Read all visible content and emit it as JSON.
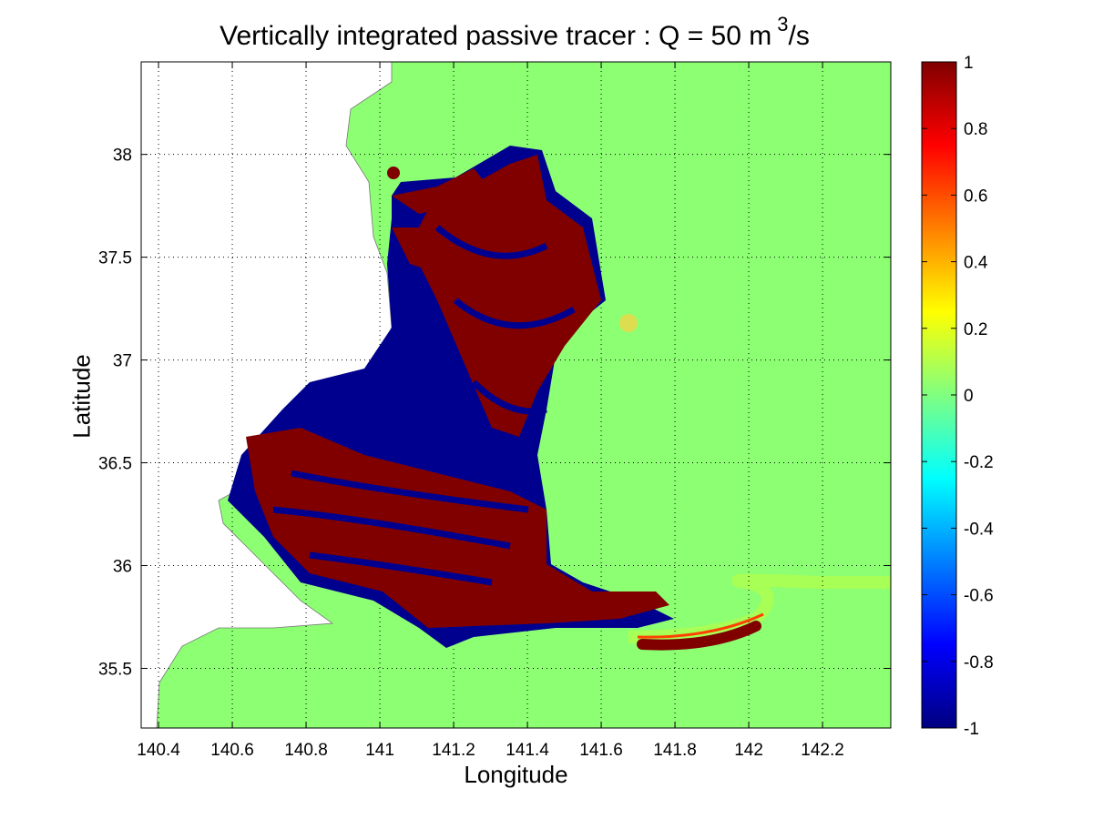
{
  "chart_data": {
    "type": "heatmap",
    "title_main": "Vertically integrated passive tracer : Q = 50 m",
    "title_sup": "3",
    "title_tail": "/s",
    "xlabel": "Longitude",
    "ylabel": "Latitude",
    "xlim": [
      140.353,
      142.385
    ],
    "ylim": [
      35.21,
      38.45
    ],
    "xticks": [
      "140.4",
      "140.6",
      "140.8",
      "141",
      "141.2",
      "141.4",
      "141.6",
      "141.8",
      "142",
      "142.2"
    ],
    "yticks": [
      "35.5",
      "36",
      "36.5",
      "37",
      "37.5",
      "38"
    ],
    "grid": "dotted, over land area",
    "colormap": "jet",
    "clim": [
      -1,
      1
    ],
    "colorbar_ticks": [
      "1",
      "0.8",
      "0.6",
      "0.4",
      "0.2",
      "0",
      "-0.2",
      "-0.4",
      "-0.6",
      "-0.8",
      "-1"
    ],
    "colorbar_location": "right",
    "colors": {
      "background_field": "#8cff73",
      "positive": "#800000",
      "negative": "#00008f",
      "land": "#ffffff"
    }
  }
}
